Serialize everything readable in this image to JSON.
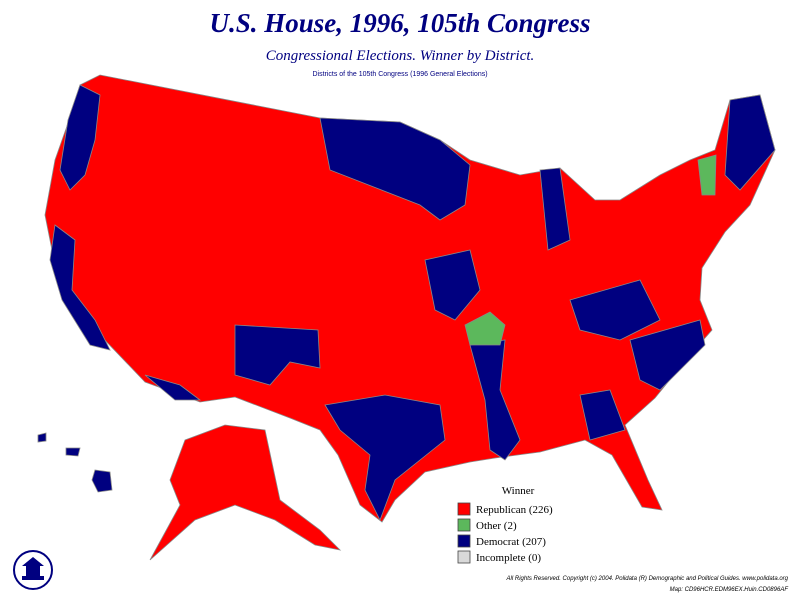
{
  "header": {
    "title": "U.S. House, 1996, 105th Congress",
    "subtitle": "Congressional Elections. Winner by District.",
    "note": "Districts of the 105th Congress (1996 General Elections)"
  },
  "legend": {
    "title": "Winner",
    "items": [
      {
        "label": "Republican (226)",
        "color": "#ff0000"
      },
      {
        "label": "Other (2)",
        "color": "#5cb85c"
      },
      {
        "label": "Democrat (207)",
        "color": "#000080"
      },
      {
        "label": "Incomplete (0)",
        "color": "#d9d9d9"
      }
    ]
  },
  "footer": {
    "line1": "All Rights Reserved. Copyright (c) 2004. Polidata (R) Demographic and Political Guides. www.polidata.org",
    "line2": "Map: CD96HCR.EDM96EX.Huin.CD0896AF"
  }
}
